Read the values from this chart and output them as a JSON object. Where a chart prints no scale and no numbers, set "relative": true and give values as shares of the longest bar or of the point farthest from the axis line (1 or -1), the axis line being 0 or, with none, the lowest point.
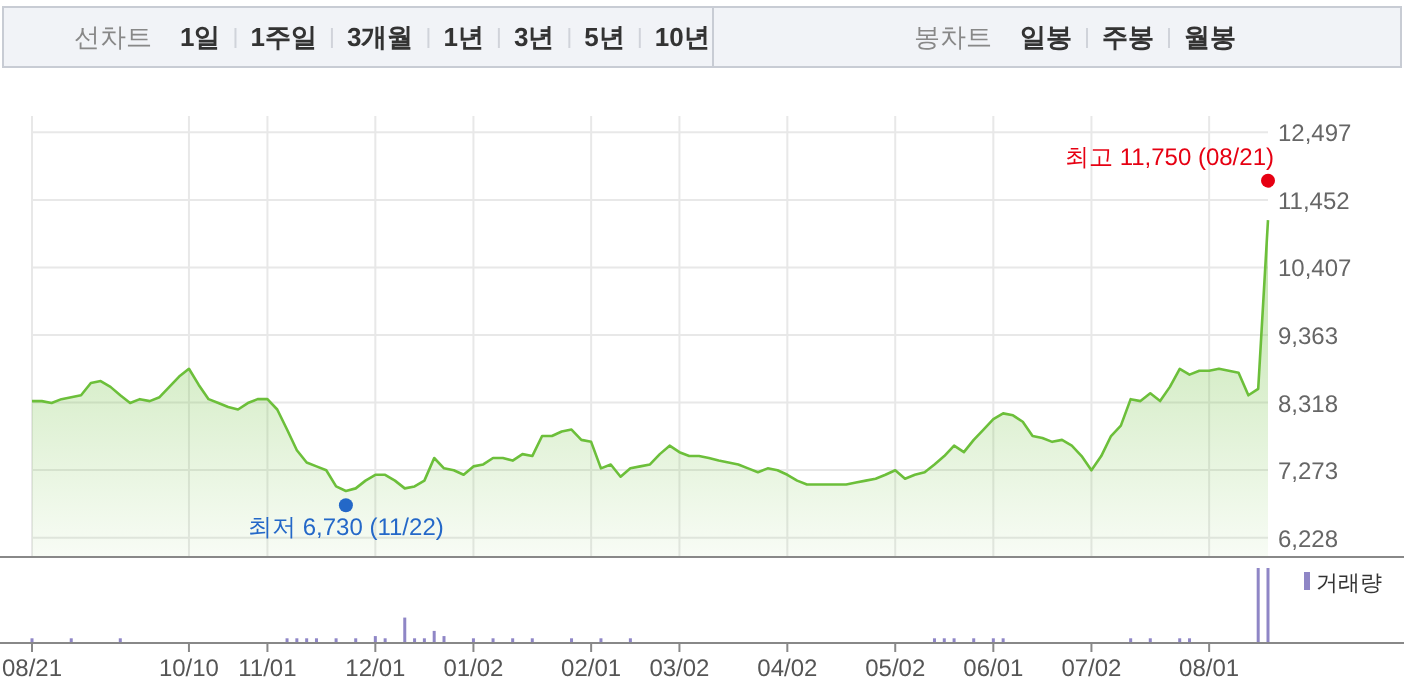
{
  "chart_data": [
    {
      "type": "other",
      "categories": [
        "선차트",
        "1일",
        "1주일",
        "3개월",
        "1년",
        "3년",
        "5년",
        "10년",
        null,
        "봉차트",
        "일봉",
        "주봉",
        "월봉"
      ]
    },
    {
      "type": "area",
      "tick_labels": "y",
      "grid": true,
      "ylim": [
        5944,
        12750
      ],
      "yticks": [
        {
          "value": 6228,
          "label": "6,228"
        },
        {
          "value": 7273,
          "label": "7,273"
        },
        {
          "value": 8318,
          "label": "8,318"
        },
        {
          "value": 9363,
          "label": "9,363"
        },
        {
          "value": 10407,
          "label": "10,407"
        },
        {
          "value": 11452,
          "label": "11,452"
        },
        {
          "value": 12497,
          "label": "12,497"
        }
      ],
      "categories": [
        null,
        null,
        null,
        null,
        null,
        null,
        null,
        null,
        null,
        null,
        null,
        null,
        null,
        null,
        null,
        null,
        null,
        null,
        null,
        null,
        null,
        null,
        null,
        null,
        null,
        null,
        null,
        null,
        null,
        null,
        null,
        null,
        null,
        null,
        null,
        null,
        null,
        null,
        null,
        null,
        null,
        null,
        null,
        null,
        null,
        null,
        null,
        null,
        null,
        null,
        null,
        null,
        null,
        null,
        null,
        null,
        null,
        null,
        null,
        null,
        null,
        null,
        null,
        null,
        null,
        null,
        null,
        null,
        null,
        null,
        null,
        null,
        null,
        null,
        null,
        null,
        null,
        null,
        null,
        null,
        null,
        null,
        null,
        null,
        null,
        null,
        null,
        null,
        null,
        null,
        null,
        null,
        null,
        null,
        null,
        null,
        null,
        null,
        null,
        null,
        null,
        null,
        null,
        null,
        null,
        null,
        null,
        null,
        null,
        null,
        null,
        null,
        null,
        null,
        null,
        null,
        null,
        null,
        null,
        null,
        null,
        null,
        null,
        null,
        null,
        null,
        null
      ],
      "series": [
        {
          "color": "#6cbf3a",
          "values": [
            8340,
            8340,
            8310,
            8370,
            8400,
            8430,
            8620,
            8650,
            8560,
            8430,
            8310,
            8370,
            8340,
            8400,
            8560,
            8720,
            8840,
            8590,
            8370,
            8310,
            8250,
            8210,
            8310,
            8370,
            8370,
            8210,
            7900,
            7580,
            7390,
            7330,
            7270,
            7020,
            6950,
            6990,
            7110,
            7200,
            7200,
            7110,
            6990,
            7020,
            7110,
            7460,
            7300,
            7270,
            7200,
            7330,
            7360,
            7460,
            7460,
            7420,
            7520,
            7490,
            7800,
            7800,
            7870,
            7900,
            7740,
            7710,
            7300,
            7360,
            7170,
            7300,
            7330,
            7360,
            7520,
            7650,
            7550,
            7490,
            7490,
            7460,
            7420,
            7390,
            7360,
            7300,
            7240,
            7300,
            7270,
            7200,
            7110,
            7050,
            7050,
            7050,
            7050,
            7050,
            7080,
            7110,
            7140,
            7200,
            7270,
            7140,
            7200,
            7240,
            7360,
            7490,
            7650,
            7550,
            7740,
            7900,
            8060,
            8150,
            8120,
            8020,
            7800,
            7770,
            7710,
            7740,
            7650,
            7490,
            7270,
            7490,
            7800,
            7960,
            8370,
            8340,
            8460,
            8340,
            8560,
            8840,
            8750,
            8810,
            8810,
            8840,
            8810,
            8780,
            8430,
            8530,
            11140
          ]
        },
        {
          "type": "scatter",
          "color": "#e60012",
          "values": [
            null,
            null,
            null,
            null,
            null,
            null,
            null,
            null,
            null,
            null,
            null,
            null,
            null,
            null,
            null,
            null,
            null,
            null,
            null,
            null,
            null,
            null,
            null,
            null,
            null,
            null,
            null,
            null,
            null,
            null,
            null,
            null,
            null,
            null,
            null,
            null,
            null,
            null,
            null,
            null,
            null,
            null,
            null,
            null,
            null,
            null,
            null,
            null,
            null,
            null,
            null,
            null,
            null,
            null,
            null,
            null,
            null,
            null,
            null,
            null,
            null,
            null,
            null,
            null,
            null,
            null,
            null,
            null,
            null,
            null,
            null,
            null,
            null,
            null,
            null,
            null,
            null,
            null,
            null,
            null,
            null,
            null,
            null,
            null,
            null,
            null,
            null,
            null,
            null,
            null,
            null,
            null,
            null,
            null,
            null,
            null,
            null,
            null,
            null,
            null,
            null,
            null,
            null,
            null,
            null,
            null,
            null,
            null,
            null,
            null,
            null,
            null,
            null,
            null,
            null,
            null,
            null,
            null,
            null,
            null,
            null,
            null,
            null,
            null,
            null,
            null,
            11750
          ]
        },
        {
          "type": "scatter",
          "color": "#2468c8",
          "values": [
            null,
            null,
            null,
            null,
            null,
            null,
            null,
            null,
            null,
            null,
            null,
            null,
            null,
            null,
            null,
            null,
            null,
            null,
            null,
            null,
            null,
            null,
            null,
            null,
            null,
            null,
            null,
            null,
            null,
            null,
            null,
            null,
            6730,
            null,
            null,
            null,
            null,
            null,
            null,
            null,
            null,
            null,
            null,
            null,
            null,
            null,
            null,
            null,
            null,
            null,
            null,
            null,
            null,
            null,
            null,
            null,
            null,
            null,
            null,
            null,
            null,
            null,
            null,
            null,
            null,
            null,
            null,
            null,
            null,
            null,
            null,
            null,
            null,
            null,
            null,
            null,
            null,
            null,
            null,
            null,
            null,
            null,
            null,
            null,
            null,
            null,
            null,
            null,
            null,
            null,
            null,
            null,
            null,
            null,
            null,
            null,
            null,
            null,
            null,
            null,
            null,
            null,
            null,
            null,
            null,
            null,
            null,
            null,
            null,
            null,
            null,
            null,
            null,
            null,
            null,
            null,
            null,
            null,
            null,
            null,
            null,
            null,
            null,
            null,
            null,
            null,
            null
          ]
        }
      ],
      "annotations": [
        "최고 11,750 (08/21)",
        "최저 6,730 (11/22)"
      ]
    },
    {
      "type": "bar",
      "relative": true,
      "tick_labels": "x",
      "legend": "top right",
      "categories": [
        "08/21",
        null,
        null,
        null,
        null,
        null,
        null,
        null,
        null,
        null,
        null,
        null,
        null,
        null,
        null,
        null,
        "10/10",
        null,
        null,
        null,
        null,
        null,
        null,
        null,
        "11/01",
        null,
        null,
        null,
        null,
        null,
        null,
        null,
        null,
        null,
        null,
        "12/01",
        null,
        null,
        null,
        null,
        null,
        null,
        null,
        null,
        null,
        "01/02",
        null,
        null,
        null,
        null,
        null,
        null,
        null,
        null,
        null,
        null,
        null,
        "02/01",
        null,
        null,
        null,
        null,
        null,
        null,
        null,
        null,
        "03/02",
        null,
        null,
        null,
        null,
        null,
        null,
        null,
        null,
        null,
        null,
        "04/02",
        null,
        null,
        null,
        null,
        null,
        null,
        null,
        null,
        null,
        null,
        "05/02",
        null,
        null,
        null,
        null,
        null,
        null,
        null,
        null,
        null,
        "06/01",
        null,
        null,
        null,
        null,
        null,
        null,
        null,
        null,
        null,
        "07/02",
        null,
        null,
        null,
        null,
        null,
        null,
        null,
        null,
        null,
        null,
        null,
        "08/01",
        null,
        null,
        null,
        null,
        null,
        null
      ],
      "series": [
        {
          "name": "거래량",
          "color": "#8f86c6",
          "values": [
            0.05,
            null,
            null,
            null,
            0.05,
            null,
            null,
            null,
            null,
            0.05,
            null,
            null,
            null,
            null,
            null,
            null,
            null,
            null,
            null,
            null,
            null,
            null,
            null,
            null,
            null,
            null,
            0.05,
            0.05,
            0.05,
            0.05,
            null,
            0.05,
            null,
            0.05,
            null,
            0.08,
            0.05,
            null,
            0.33,
            0.05,
            0.05,
            0.15,
            0.08,
            null,
            null,
            0.05,
            null,
            0.05,
            null,
            0.05,
            null,
            0.05,
            null,
            null,
            null,
            0.05,
            null,
            null,
            0.05,
            null,
            null,
            0.05,
            null,
            null,
            null,
            null,
            null,
            null,
            null,
            null,
            null,
            null,
            null,
            null,
            null,
            null,
            null,
            null,
            null,
            null,
            null,
            null,
            null,
            null,
            null,
            null,
            null,
            null,
            null,
            null,
            null,
            null,
            0.05,
            0.05,
            0.05,
            null,
            0.05,
            null,
            0.05,
            0.05,
            null,
            null,
            null,
            null,
            null,
            null,
            null,
            null,
            null,
            null,
            null,
            null,
            0.05,
            null,
            0.05,
            null,
            null,
            0.05,
            0.05,
            null,
            null,
            null,
            null,
            null,
            null,
            1,
            1
          ]
        }
      ]
    }
  ]
}
